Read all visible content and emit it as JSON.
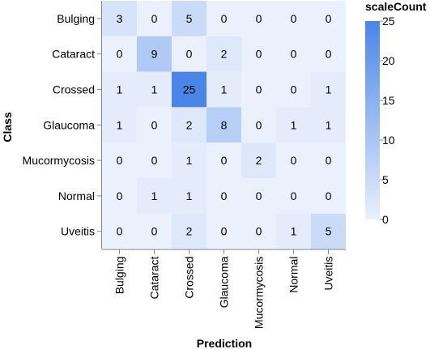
{
  "chart_data": {
    "type": "heatmap",
    "x_categories": [
      "Bulging",
      "Cataract",
      "Crossed",
      "Glaucoma",
      "Mucormycosis",
      "Normal",
      "Uveitis"
    ],
    "y_categories": [
      "Bulging",
      "Cataract",
      "Crossed",
      "Glaucoma",
      "Mucormycosis",
      "Normal",
      "Uveitis"
    ],
    "values": [
      [
        3,
        0,
        5,
        0,
        0,
        0,
        0
      ],
      [
        0,
        9,
        0,
        2,
        0,
        0,
        0
      ],
      [
        1,
        1,
        25,
        1,
        0,
        0,
        1
      ],
      [
        1,
        0,
        2,
        8,
        0,
        1,
        1
      ],
      [
        0,
        0,
        1,
        0,
        2,
        0,
        0
      ],
      [
        0,
        1,
        1,
        0,
        0,
        0,
        0
      ],
      [
        0,
        0,
        2,
        0,
        0,
        1,
        5
      ]
    ],
    "xlabel": "Prediction",
    "ylabel": "Class",
    "legend": {
      "title": "scaleCount",
      "ticks": [
        0,
        5,
        10,
        15,
        20,
        25
      ],
      "domain": [
        0,
        25
      ],
      "color_low": "#eaf0fc",
      "color_high": "#4a86e8",
      "placement": "right"
    },
    "grid": false
  }
}
